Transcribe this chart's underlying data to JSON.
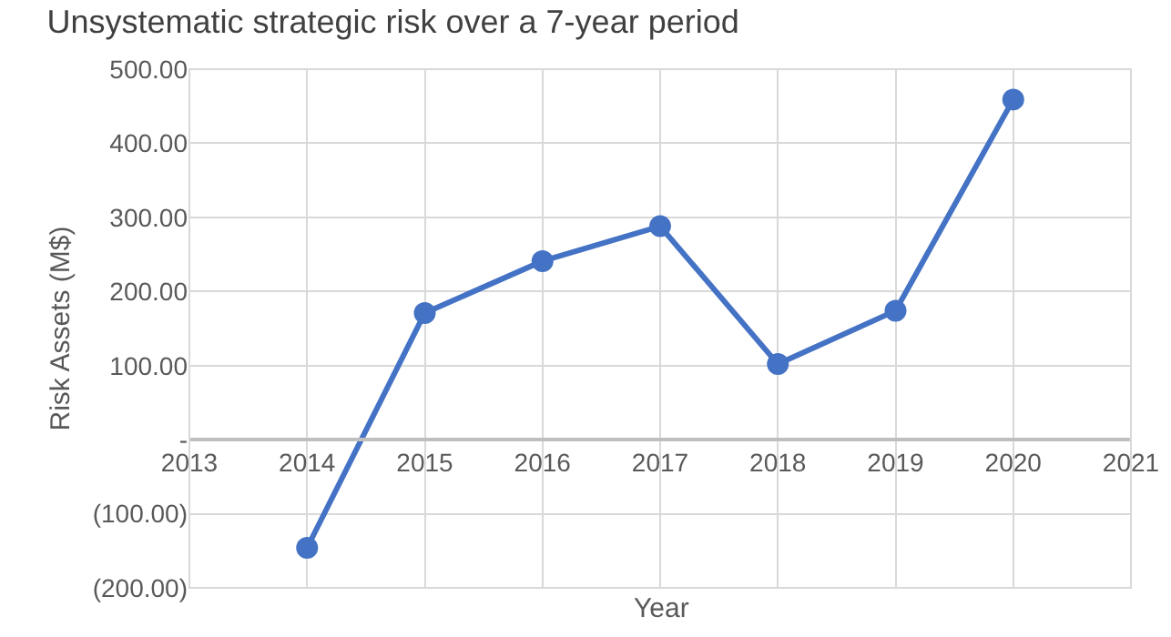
{
  "chart_data": {
    "type": "line",
    "title": "Unsystematic strategic risk over a 7-year period",
    "xlabel": "Year",
    "ylabel": "Risk Assets (M$)",
    "x": [
      2014,
      2015,
      2016,
      2017,
      2018,
      2019,
      2020
    ],
    "series": [
      {
        "color": "#4472c4",
        "values": [
          -146,
          171,
          241,
          288,
          102,
          174,
          459
        ]
      }
    ],
    "xlim": [
      2013,
      2021
    ],
    "xticks": [
      2013,
      2014,
      2015,
      2016,
      2017,
      2018,
      2019,
      2020,
      2021
    ],
    "ylim": [
      -200,
      500
    ],
    "yticks": [
      {
        "value": -200,
        "label": "(200.00)"
      },
      {
        "value": -100,
        "label": "(100.00)"
      },
      {
        "value": 0,
        "label": "-"
      },
      {
        "value": 100,
        "label": "100.00"
      },
      {
        "value": 200,
        "label": "200.00"
      },
      {
        "value": 300,
        "label": "300.00"
      },
      {
        "value": 400,
        "label": "400.00"
      },
      {
        "value": 500,
        "label": "500.00"
      }
    ],
    "grid": true,
    "marker": "circle",
    "line_style": "solid"
  }
}
